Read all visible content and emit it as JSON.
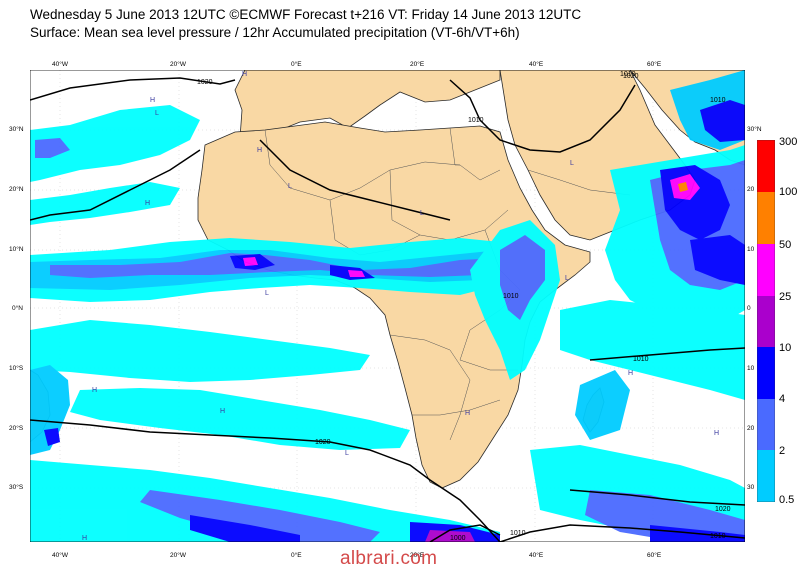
{
  "header": {
    "title_line1": "Wednesday 5 June 2013 12UTC ©ECMWF Forecast t+216 VT: Friday 14 June 2013 12UTC",
    "title_line2": "Surface: Mean sea level pressure / 12hr Accumulated precipitation (VT-6h/VT+6h)"
  },
  "map": {
    "lon_labels": [
      "40°W",
      "20°W",
      "0°E",
      "20°E",
      "40°E",
      "60°E"
    ],
    "lat_labels": [
      "30°N",
      "20°N",
      "10°N",
      "0°N",
      "10°S",
      "20°S",
      "30°S"
    ],
    "right_lat_labels": [
      "30°N",
      "20",
      "10",
      "0",
      "10",
      "20",
      "30"
    ],
    "isobar_labels": [
      "1020",
      "1010",
      "1010",
      "1020",
      "1020",
      "1010",
      "1000",
      "1010",
      "1010",
      "1020",
      "1010",
      "1010"
    ],
    "high_marker": "H",
    "low_marker": "L",
    "colors": {
      "land": "#f9d8a4",
      "sea": "#ffffff",
      "coast": "#2b2b2b"
    }
  },
  "colorbar": {
    "labels": [
      "300",
      "100",
      "50",
      "25",
      "10",
      "4",
      "2",
      "0.5"
    ],
    "colors": [
      "#ff0000",
      "#ff8000",
      "#ff00ff",
      "#aa00cc",
      "#0000ff",
      "#4a6aff",
      "#00ccff",
      "#00ffff"
    ]
  },
  "credit": "albrari.com"
}
